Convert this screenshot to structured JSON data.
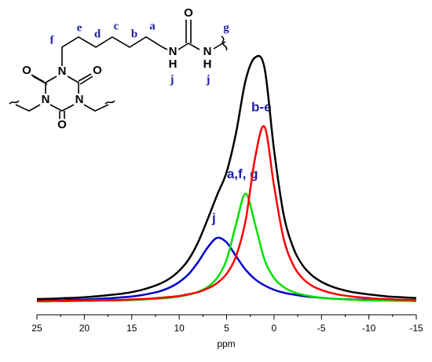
{
  "chart_data": {
    "type": "line",
    "xlabel": "ppm",
    "xlim": [
      25,
      -15
    ],
    "xticks": [
      25,
      20,
      15,
      10,
      5,
      0,
      -5,
      -10,
      -15
    ],
    "ylim": [
      0,
      1.1
    ],
    "x": [
      25,
      24,
      23,
      22,
      21,
      20,
      19,
      18,
      17,
      16,
      15,
      14,
      13,
      12,
      11,
      10,
      9,
      8,
      7,
      6,
      5,
      4,
      3,
      2,
      1,
      0,
      -1,
      -2,
      -3,
      -4,
      -5,
      -6,
      -7,
      -8,
      -9,
      -10,
      -11,
      -12,
      -13,
      -14,
      -15
    ],
    "series": [
      {
        "color": "#0000cc",
        "label": "j",
        "values": [
          0.055,
          0.056,
          0.056,
          0.057,
          0.058,
          0.059,
          0.061,
          0.063,
          0.065,
          0.068,
          0.071,
          0.076,
          0.083,
          0.092,
          0.106,
          0.127,
          0.158,
          0.205,
          0.261,
          0.299,
          0.281,
          0.227,
          0.175,
          0.138,
          0.114,
          0.097,
          0.086,
          0.079,
          0.073,
          0.069,
          0.066,
          0.063,
          0.061,
          0.06,
          0.059,
          0.058,
          0.057,
          0.056,
          0.055,
          0.055,
          0.054
        ]
      },
      {
        "color": "#00e000",
        "label": "a,f, g",
        "values": [
          0.052,
          0.052,
          0.053,
          0.053,
          0.053,
          0.054,
          0.054,
          0.055,
          0.055,
          0.056,
          0.057,
          0.059,
          0.061,
          0.063,
          0.066,
          0.071,
          0.078,
          0.089,
          0.108,
          0.143,
          0.214,
          0.352,
          0.47,
          0.352,
          0.214,
          0.143,
          0.108,
          0.089,
          0.078,
          0.071,
          0.066,
          0.063,
          0.061,
          0.059,
          0.057,
          0.056,
          0.055,
          0.055,
          0.054,
          0.054,
          0.053
        ]
      },
      {
        "color": "#ff0000",
        "label": "b-e",
        "values": [
          0.053,
          0.054,
          0.054,
          0.054,
          0.055,
          0.055,
          0.056,
          0.057,
          0.057,
          0.058,
          0.06,
          0.061,
          0.063,
          0.066,
          0.069,
          0.073,
          0.08,
          0.088,
          0.102,
          0.123,
          0.159,
          0.228,
          0.365,
          0.609,
          0.73,
          0.501,
          0.298,
          0.195,
          0.142,
          0.113,
          0.096,
          0.085,
          0.077,
          0.072,
          0.068,
          0.065,
          0.062,
          0.061,
          0.059,
          0.058,
          0.057
        ]
      },
      {
        "color": "#000000",
        "values": [
          0.061,
          0.062,
          0.063,
          0.065,
          0.066,
          0.068,
          0.071,
          0.074,
          0.078,
          0.082,
          0.088,
          0.096,
          0.107,
          0.121,
          0.141,
          0.171,
          0.215,
          0.282,
          0.371,
          0.465,
          0.554,
          0.707,
          0.91,
          0.999,
          0.958,
          0.641,
          0.392,
          0.263,
          0.193,
          0.153,
          0.128,
          0.111,
          0.099,
          0.09,
          0.084,
          0.079,
          0.075,
          0.071,
          0.069,
          0.067,
          0.065
        ]
      }
    ]
  },
  "structure": {
    "atoms": [
      "N",
      "N",
      "N",
      "O",
      "O",
      "O",
      "N",
      "H",
      "O",
      "N",
      "H"
    ],
    "labels": [
      "f",
      "e",
      "d",
      "c",
      "b",
      "a",
      "g",
      "j",
      "j"
    ]
  }
}
